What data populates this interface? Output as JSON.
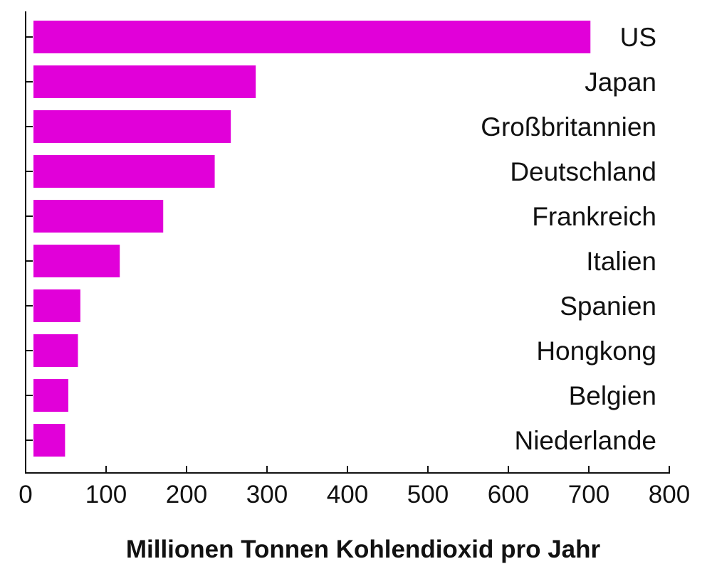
{
  "chart_data": {
    "type": "bar",
    "orientation": "horizontal",
    "categories": [
      "US",
      "Japan",
      "Großbritannien",
      "Deutschland",
      "Frankreich",
      "Italien",
      "Spanien",
      "Hongkong",
      "Belgien",
      "Niederlande"
    ],
    "values": [
      702,
      286,
      255,
      235,
      171,
      117,
      68,
      65,
      53,
      49
    ],
    "xlabel": "Millionen Tonnen Kohlendioxid pro Jahr",
    "ylabel": "",
    "xlim": [
      0,
      800
    ],
    "xticks": [
      0,
      100,
      200,
      300,
      400,
      500,
      600,
      700,
      800
    ],
    "bar_color": "#e100d9",
    "grid": false,
    "legend": "none"
  }
}
